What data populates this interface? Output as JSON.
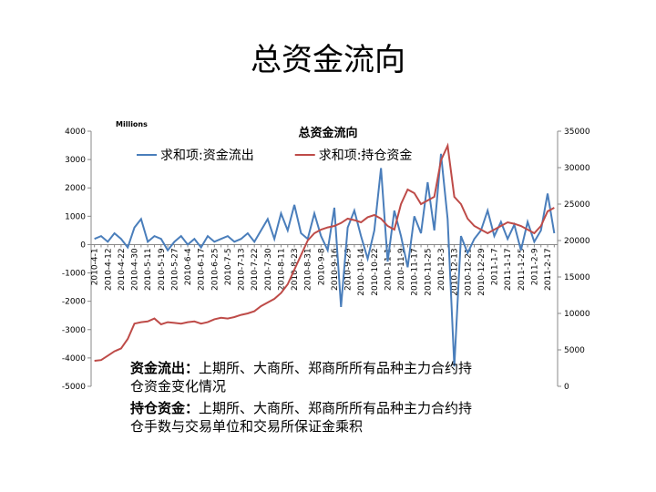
{
  "slide_title": "总资金流向",
  "chart_data": {
    "type": "line",
    "title": "总资金流向",
    "unit_label": "Millions",
    "categories": [
      "2010-4-1",
      null,
      "2010-4-12",
      null,
      "2010-4-22",
      null,
      "2010-4-30",
      null,
      "2010-5-11",
      null,
      "2010-5-19",
      null,
      "2010-5-27",
      null,
      "2010-6-4",
      null,
      "2010-6-17",
      null,
      "2010-6-25",
      null,
      "2010-7-5",
      null,
      "2010-7-13",
      null,
      "2010-7-22",
      null,
      "2010-7-30",
      null,
      "2010-8-11",
      null,
      "2010-8-23",
      null,
      "2010-8-31",
      null,
      "2010-9-8",
      null,
      "2010-9-16",
      null,
      "2010-9-29",
      null,
      "2010-10-14",
      null,
      "2010-10-22",
      null,
      "2010-11-1",
      null,
      "2010-11-9",
      null,
      "2010-11-17",
      null,
      "2010-11-25",
      null,
      "2010-12-3",
      null,
      "2010-12-13",
      null,
      "2010-12-21",
      null,
      "2010-12-29",
      null,
      "2011-1-7",
      null,
      "2011-1-17",
      null,
      "2011-1-25",
      null,
      "2011-2-9",
      null,
      "2011-2-17",
      null
    ],
    "series": [
      {
        "name": "求和项:资金流出",
        "color": "#4a7ebb",
        "axis": "y",
        "values": [
          200,
          300,
          100,
          400,
          200,
          -100,
          600,
          900,
          100,
          300,
          200,
          -200,
          100,
          300,
          0,
          200,
          -100,
          300,
          100,
          200,
          300,
          100,
          200,
          400,
          100,
          500,
          900,
          200,
          1100,
          500,
          1400,
          400,
          200,
          1100,
          300,
          -200,
          1300,
          -2200,
          600,
          1200,
          300,
          -500,
          500,
          2700,
          -600,
          1200,
          300,
          -800,
          1000,
          400,
          2200,
          500,
          3200,
          900,
          -4300,
          300,
          -300,
          200,
          500,
          1200,
          300,
          800,
          200,
          700,
          -200,
          800,
          100,
          500,
          1800,
          400
        ]
      },
      {
        "name": "求和项:持仓资金",
        "color": "#be4b48",
        "axis": "y2",
        "values": [
          3500,
          3600,
          4200,
          4800,
          5200,
          6500,
          8600,
          8800,
          8900,
          9300,
          8500,
          8800,
          8700,
          8600,
          8800,
          8900,
          8600,
          8800,
          9200,
          9400,
          9300,
          9500,
          9800,
          10000,
          10300,
          11000,
          11500,
          12000,
          12800,
          14000,
          16000,
          18000,
          20000,
          21000,
          21500,
          21800,
          22000,
          22400,
          23000,
          22800,
          22500,
          23200,
          23500,
          23000,
          22000,
          21500,
          25000,
          27000,
          26500,
          25000,
          25500,
          26000,
          31000,
          33000,
          26000,
          25000,
          23000,
          22000,
          21500,
          21000,
          21500,
          22000,
          22500,
          22300,
          22000,
          21500,
          21000,
          22000,
          24000,
          24500
        ]
      }
    ],
    "ylim": [
      -5000,
      4000
    ],
    "yticks": [
      -5000,
      -4000,
      -3000,
      -2000,
      -1000,
      0,
      1000,
      2000,
      3000,
      4000
    ],
    "y2lim": [
      0,
      35000
    ],
    "y2ticks": [
      0,
      5000,
      10000,
      15000,
      20000,
      25000,
      30000,
      35000
    ],
    "legend": "top"
  },
  "notes": [
    {
      "term": "资金流出：",
      "text": "上期所、大商所、郑商所所有品种主力合约持仓资金变化情况"
    },
    {
      "term": "持仓资金：",
      "text": "上期所、大商所、郑商所所有品种主力合约持仓手数与交易单位和交易所保证金乘积"
    }
  ]
}
